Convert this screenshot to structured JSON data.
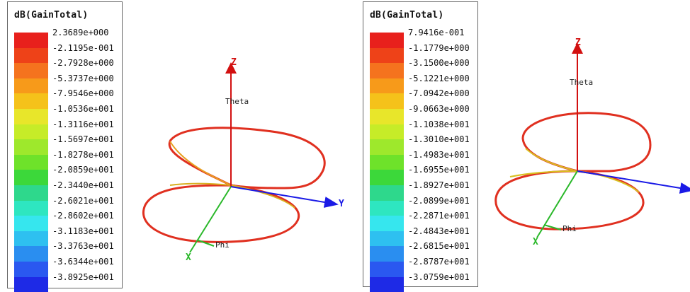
{
  "legend_left": {
    "title": "dB(GainTotal)",
    "labels": [
      "2.3689e+000",
      "-2.1195e-001",
      "-2.7928e+000",
      "-5.3737e+000",
      "-7.9546e+000",
      "-1.0536e+001",
      "-1.3116e+001",
      "-1.5697e+001",
      "-1.8278e+001",
      "-2.0859e+001",
      "-2.3440e+001",
      "-2.6021e+001",
      "-2.8602e+001",
      "-3.1183e+001",
      "-3.3763e+001",
      "-3.6344e+001",
      "-3.8925e+001"
    ]
  },
  "legend_right": {
    "title": "dB(GainTotal)",
    "labels": [
      "7.9416e-001",
      "-1.1779e+000",
      "-3.1500e+000",
      "-5.1221e+000",
      "-7.0942e+000",
      "-9.0663e+000",
      "-1.1038e+001",
      "-1.3010e+001",
      "-1.4983e+001",
      "-1.6955e+001",
      "-1.8927e+001",
      "-2.0899e+001",
      "-2.2871e+001",
      "-2.4843e+001",
      "-2.6815e+001",
      "-2.8787e+001",
      "-3.0759e+001"
    ]
  },
  "colors": [
    "#e8201c",
    "#ee4218",
    "#f5731e",
    "#f79a1a",
    "#f5c21a",
    "#e8e62a",
    "#c6ec28",
    "#9ee82c",
    "#6ee22a",
    "#3cd83a",
    "#2ed88c",
    "#2ee6c0",
    "#36e6ee",
    "#2ec0f0",
    "#2a8ef0",
    "#2a58f0",
    "#1e2ae6"
  ],
  "plot_left": {
    "z_label": "Z",
    "y_label": "Y",
    "x_label": "X",
    "theta_label": "Theta",
    "phi_label": "Phi"
  },
  "plot_right": {
    "z_label": "Z",
    "x_label": "X",
    "theta_label": "Theta",
    "phi_label": "Phi"
  }
}
